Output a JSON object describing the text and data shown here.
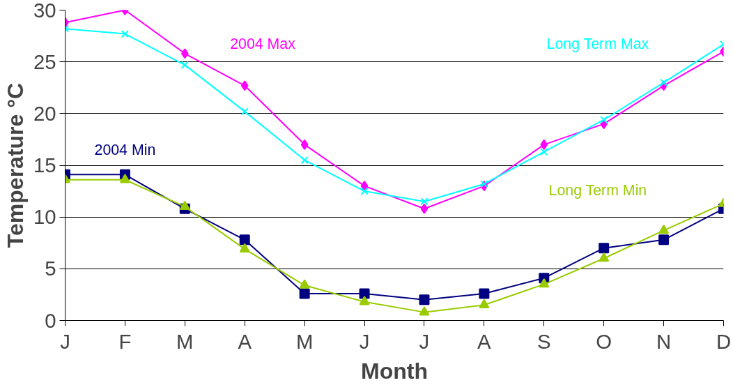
{
  "chart_data": {
    "type": "line",
    "xlabel": "Month",
    "ylabel": "Temperature °C",
    "categories": [
      "J",
      "F",
      "M",
      "A",
      "M",
      "J",
      "J",
      "A",
      "S",
      "O",
      "N",
      "D"
    ],
    "series": [
      {
        "name": "2004 Max",
        "color": "#ff00ff",
        "marker": "diamond",
        "values": [
          28.8,
          30.0,
          25.8,
          22.7,
          17.0,
          13.0,
          10.8,
          13.0,
          17.0,
          19.0,
          22.7,
          26.0
        ]
      },
      {
        "name": "Long Term Max",
        "color": "#00ffff",
        "marker": "cross",
        "values": [
          28.2,
          27.7,
          24.7,
          20.2,
          15.5,
          12.5,
          11.5,
          13.2,
          16.3,
          19.4,
          23.0,
          26.7
        ]
      },
      {
        "name": "2004 Min",
        "color": "#000080",
        "marker": "square",
        "values": [
          14.1,
          14.1,
          10.8,
          7.8,
          2.6,
          2.6,
          2.0,
          2.6,
          4.1,
          7.0,
          7.8,
          10.8
        ]
      },
      {
        "name": "Long Term Min",
        "color": "#99cc00",
        "marker": "triangle",
        "values": [
          13.6,
          13.6,
          11.0,
          6.9,
          3.4,
          1.8,
          0.8,
          1.5,
          3.5,
          6.0,
          8.7,
          11.3
        ]
      }
    ],
    "ylim": [
      0,
      30
    ],
    "yticks": [
      0,
      5,
      10,
      15,
      20,
      25,
      30
    ],
    "grid": "y",
    "legend": false,
    "line_style": "solid"
  }
}
